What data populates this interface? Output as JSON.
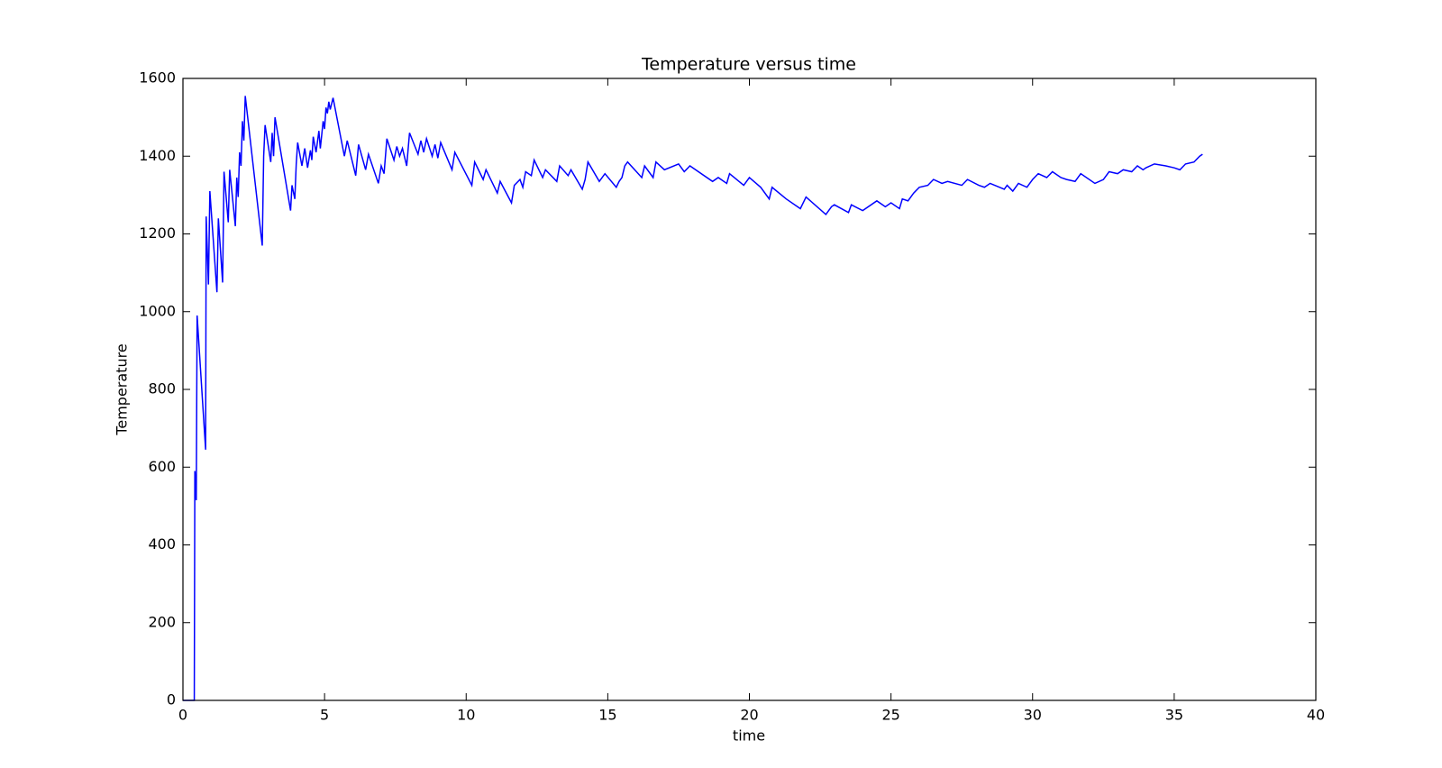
{
  "chart_data": {
    "type": "line",
    "title": "Temperature versus time",
    "x_label": "time",
    "y_label": "Temperature",
    "color": "#0000ff",
    "xlim": [
      0,
      40
    ],
    "xticks": [
      0,
      5,
      10,
      15,
      20,
      25,
      30,
      35,
      40
    ],
    "ylim": [
      0,
      1600
    ],
    "yticks": [
      0,
      200,
      400,
      600,
      800,
      1000,
      1200,
      1400,
      1600
    ],
    "x": [
      0,
      0.4,
      0.42,
      0.47,
      0.5,
      0.8,
      0.82,
      0.9,
      0.95,
      1.2,
      1.25,
      1.4,
      1.45,
      1.6,
      1.65,
      1.85,
      1.9,
      1.95,
      2.0,
      2.05,
      2.1,
      2.15,
      2.2,
      2.8,
      2.85,
      2.9,
      3.1,
      3.15,
      3.2,
      3.25,
      3.8,
      3.85,
      3.95,
      4.0,
      4.05,
      4.2,
      4.3,
      4.4,
      4.5,
      4.55,
      4.6,
      4.7,
      4.8,
      4.85,
      4.95,
      5.0,
      5.05,
      5.1,
      5.15,
      5.2,
      5.3,
      5.7,
      5.8,
      6.1,
      6.2,
      6.45,
      6.55,
      6.9,
      7.0,
      7.1,
      7.2,
      7.45,
      7.55,
      7.65,
      7.75,
      7.9,
      8.0,
      8.3,
      8.4,
      8.5,
      8.6,
      8.8,
      8.9,
      9.0,
      9.1,
      9.5,
      9.6,
      10.2,
      10.3,
      10.6,
      10.7,
      11.1,
      11.2,
      11.6,
      11.7,
      11.9,
      12.0,
      12.1,
      12.3,
      12.4,
      12.7,
      12.8,
      13.2,
      13.3,
      13.6,
      13.7,
      14.1,
      14.2,
      14.3,
      14.7,
      14.9,
      15.3,
      15.4,
      15.5,
      15.6,
      15.7,
      16.2,
      16.3,
      16.6,
      16.7,
      17.0,
      17.5,
      17.7,
      17.9,
      18.7,
      18.9,
      19.2,
      19.3,
      19.8,
      20.0,
      20.4,
      20.7,
      20.8,
      21.3,
      21.8,
      22.0,
      22.7,
      22.9,
      23.0,
      23.5,
      23.6,
      24.0,
      24.5,
      24.8,
      25.0,
      25.3,
      25.4,
      25.6,
      25.8,
      26.0,
      26.3,
      26.5,
      26.8,
      27.0,
      27.5,
      27.7,
      28.1,
      28.3,
      28.5,
      29.0,
      29.1,
      29.3,
      29.5,
      29.8,
      30.0,
      30.2,
      30.5,
      30.7,
      31.0,
      31.2,
      31.5,
      31.7,
      32.2,
      32.5,
      32.7,
      33.0,
      33.2,
      33.5,
      33.7,
      33.9,
      34.0,
      34.3,
      34.7,
      35.0,
      35.2,
      35.4,
      35.7,
      35.9,
      36.0
    ],
    "values": [
      0,
      0,
      590,
      515,
      990,
      645,
      1245,
      1070,
      1310,
      1050,
      1240,
      1075,
      1360,
      1230,
      1365,
      1220,
      1345,
      1295,
      1410,
      1375,
      1490,
      1440,
      1555,
      1170,
      1400,
      1480,
      1385,
      1460,
      1400,
      1500,
      1260,
      1325,
      1290,
      1380,
      1435,
      1375,
      1420,
      1370,
      1415,
      1390,
      1450,
      1410,
      1465,
      1420,
      1490,
      1470,
      1525,
      1510,
      1540,
      1520,
      1550,
      1400,
      1440,
      1350,
      1430,
      1365,
      1405,
      1330,
      1375,
      1355,
      1445,
      1390,
      1425,
      1400,
      1420,
      1375,
      1460,
      1405,
      1440,
      1410,
      1445,
      1400,
      1430,
      1395,
      1435,
      1365,
      1410,
      1325,
      1385,
      1340,
      1365,
      1305,
      1335,
      1280,
      1325,
      1340,
      1320,
      1360,
      1350,
      1390,
      1345,
      1365,
      1335,
      1375,
      1350,
      1365,
      1315,
      1340,
      1385,
      1335,
      1355,
      1320,
      1335,
      1345,
      1375,
      1385,
      1345,
      1375,
      1345,
      1385,
      1365,
      1380,
      1360,
      1375,
      1335,
      1345,
      1330,
      1355,
      1325,
      1345,
      1320,
      1290,
      1320,
      1290,
      1265,
      1295,
      1250,
      1270,
      1275,
      1255,
      1275,
      1260,
      1285,
      1270,
      1280,
      1265,
      1290,
      1285,
      1305,
      1320,
      1325,
      1340,
      1330,
      1335,
      1325,
      1340,
      1325,
      1320,
      1330,
      1315,
      1325,
      1310,
      1330,
      1320,
      1340,
      1355,
      1345,
      1360,
      1345,
      1340,
      1335,
      1355,
      1330,
      1340,
      1360,
      1355,
      1365,
      1360,
      1375,
      1365,
      1370,
      1380,
      1375,
      1370,
      1365,
      1380,
      1385,
      1400,
      1405
    ]
  }
}
